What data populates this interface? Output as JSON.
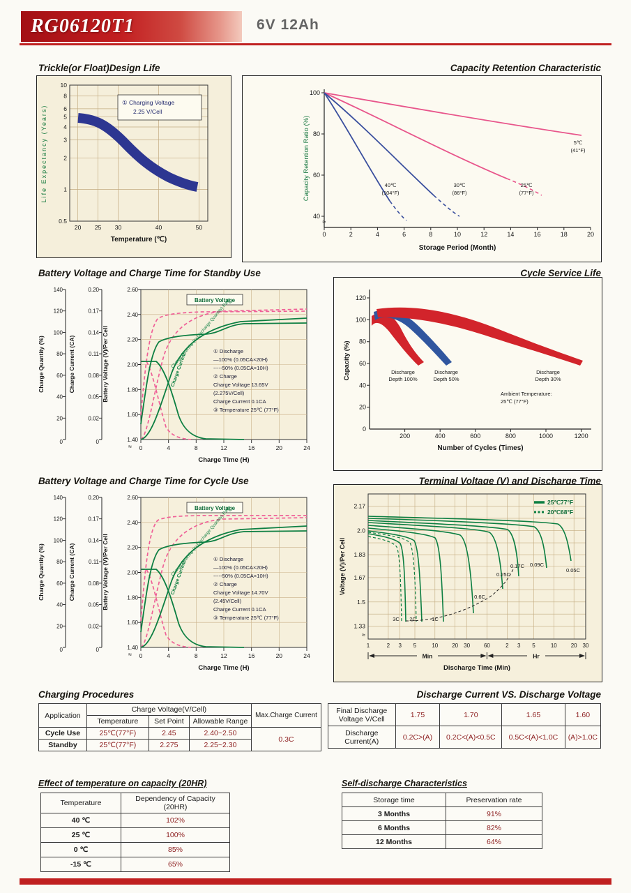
{
  "header": {
    "model": "RG06120T1",
    "rating": "6V  12Ah"
  },
  "misc": {
    "approx": "≈"
  },
  "charts": {
    "design_life": {
      "title": "Trickle(or Float)Design Life",
      "ylabel": "Life Expectancy (Years)",
      "xlabel": "Temperature (℃)",
      "yticks": [
        "10",
        "8",
        "6",
        "5",
        "4",
        "3",
        "2",
        "1",
        "0.5"
      ],
      "xticks": [
        "20",
        "25",
        "30",
        "40",
        "50"
      ],
      "legend_line1": "① Charging Voltage",
      "legend_line2": "2.25 V/Cell"
    },
    "capacity_retention": {
      "title": "Capacity Retention  Characteristic",
      "ylabel": "Capacity Retention Ratio (%)",
      "xlabel": "Storage Period (Month)",
      "yticks": [
        "100",
        "80",
        "60",
        "40"
      ],
      "xticks": [
        "0",
        "2",
        "4",
        "6",
        "8",
        "10",
        "12",
        "14",
        "16",
        "18",
        "20"
      ],
      "series_labels": [
        {
          "c": "5℃",
          "f": "(41°F)"
        },
        {
          "c": "40℃",
          "f": "(104°F)"
        },
        {
          "c": "30℃",
          "f": "(86°F)"
        },
        {
          "c": "25℃",
          "f": "(77°F)"
        }
      ]
    },
    "charge_axes": {
      "quantity_label": "Charge Quantity (%)",
      "current_label": "Charge Current (CA)",
      "voltage_label": "Battery Voltage (V)/Per Cell",
      "xlabel": "Charge Time (H)",
      "quantity_ticks": [
        "140",
        "120",
        "100",
        "80",
        "60",
        "40",
        "20"
      ],
      "current_ticks": [
        "0.20",
        "0.17",
        "0.14",
        "0.11",
        "0.08",
        "0.05",
        "0.02"
      ],
      "voltage_ticks": [
        "2.60",
        "2.40",
        "2.20",
        "2.00",
        "1.80",
        "1.60",
        "1.40"
      ],
      "zero": "0",
      "xticks": [
        "0",
        "4",
        "8",
        "12",
        "16",
        "20",
        "24"
      ],
      "voltage_tag": "Battery Voltage",
      "quantity_tag": "Charge Quantity (to-Discharge Quantity) Ratio",
      "current_tag": "Charge Current"
    },
    "standby": {
      "title": "Battery Voltage and Charge Time for Standby Use",
      "legend": [
        "① Discharge",
        "—100% (0.05CA×20H)",
        "-----50% (0.05CA×10H)",
        "② Charge",
        "Charge Voltage 13.65V",
        "(2.275V/Cell)",
        "Charge Current 0.1CA",
        "③ Temperature 25℃ (77°F)"
      ]
    },
    "cycle_use": {
      "title": "Battery Voltage and Charge Time for Cycle Use",
      "legend": [
        "① Discharge",
        "—100% (0.05CA×20H)",
        "-----50% (0.05CA×10H)",
        "② Charge",
        "Charge Voltage 14.70V",
        "(2.45V/Cell)",
        "Charge Current 0.1CA",
        "③ Temperature 25℃ (77°F)"
      ]
    },
    "cycle_life": {
      "title": "Cycle Service Life",
      "ylabel": "Capacity (%)",
      "xlabel": "Number of Cycles (Times)",
      "yticks": [
        "120",
        "100",
        "80",
        "60",
        "40",
        "20",
        "0"
      ],
      "xticks": [
        "200",
        "400",
        "600",
        "800",
        "1000",
        "1200"
      ],
      "band_labels": [
        [
          "Discharge",
          "Depth 100%"
        ],
        [
          "Discharge",
          "Depth 50%"
        ],
        [
          "Discharge",
          "Depth 30%"
        ]
      ],
      "ambient": [
        "Ambient Temperature:",
        "25℃ (77°F)"
      ]
    },
    "terminal_voltage": {
      "title": "Terminal Voltage (V) and Discharge Time",
      "ylabel": "Voltage (V)/Per Cell",
      "xlabel": "Discharge Time (Min)",
      "yticks": [
        "2.17",
        "2.0",
        "1.83",
        "1.67",
        "1.5",
        "1.33"
      ],
      "xticks_min": [
        "1",
        "2",
        "3",
        "5",
        "10",
        "20",
        "30",
        "60"
      ],
      "xticks_hr": [
        "2",
        "3",
        "5",
        "10",
        "20",
        "30"
      ],
      "min_label": "Min",
      "hr_label": "Hr",
      "legend_25": "25℃77°F",
      "legend_20": "20℃68°F",
      "rate_labels": [
        "3C",
        "2C",
        "1C",
        "0.6C",
        "0.25C",
        "0.17C",
        "0.09C",
        "0.05C"
      ]
    }
  },
  "tables": {
    "charging": {
      "title": "Charging Procedures",
      "h_application": "Application",
      "h_charge_voltage": "Charge Voltage(V/Cell)",
      "h_temperature": "Temperature",
      "h_set_point": "Set Point",
      "h_allowable": "Allowable Range",
      "h_max_current": "Max.Charge Current",
      "rows": [
        {
          "app": "Cycle Use",
          "temp": "25℃(77°F)",
          "set": "2.45",
          "range": "2.40~2.50"
        },
        {
          "app": "Standby",
          "temp": "25℃(77°F)",
          "set": "2.275",
          "range": "2.25~2.30"
        }
      ],
      "max_current": "0.3C"
    },
    "discharge": {
      "title": "Discharge Current VS. Discharge Voltage",
      "row1_label": [
        "Final Discharge",
        "Voltage V/Cell"
      ],
      "row1_values": [
        "1.75",
        "1.70",
        "1.65",
        "1.60"
      ],
      "row2_label": [
        "Discharge",
        "Current(A)"
      ],
      "row2_values": [
        "0.2C>(A)",
        "0.2C<(A)<0.5C",
        "0.5C<(A)<1.0C",
        "(A)>1.0C"
      ]
    },
    "temp_capacity": {
      "title": "Effect of temperature on capacity (20HR)",
      "headers": [
        "Temperature",
        "Dependency of Capacity (20HR)"
      ],
      "rows": [
        [
          "40 ℃",
          "102%"
        ],
        [
          "25 ℃",
          "100%"
        ],
        [
          "0 ℃",
          "85%"
        ],
        [
          "-15 ℃",
          "65%"
        ]
      ]
    },
    "self_discharge": {
      "title": "Self-discharge Characteristics",
      "headers": [
        "Storage time",
        "Preservation rate"
      ],
      "rows": [
        [
          "3 Months",
          "91%"
        ],
        [
          "6 Months",
          "82%"
        ],
        [
          "12 Months",
          "64%"
        ]
      ]
    }
  },
  "chart_data": [
    {
      "type": "line",
      "title": "Trickle(or Float)Design Life",
      "xlabel": "Temperature (℃)",
      "ylabel": "Life Expectancy (Years)",
      "y_scale": "log",
      "ylim": [
        0.5,
        10
      ],
      "xticks": [
        20,
        25,
        30,
        40,
        50
      ],
      "series": [
        {
          "name": "Charging Voltage 2.25V/Cell (design life band)",
          "x": [
            20,
            25,
            30,
            35,
            40,
            45,
            50
          ],
          "y": [
            5,
            4.4,
            3.2,
            2.2,
            1.6,
            1.2,
            1
          ]
        }
      ]
    },
    {
      "type": "line",
      "title": "Capacity Retention Characteristic",
      "xlabel": "Storage Period (Month)",
      "ylabel": "Capacity Retention Ratio (%)",
      "xlim": [
        0,
        20
      ],
      "ylim": [
        40,
        100
      ],
      "series": [
        {
          "name": "5℃ (41°F)",
          "x": [
            0,
            5,
            10,
            15,
            20
          ],
          "y": [
            100,
            95,
            90,
            85,
            80
          ]
        },
        {
          "name": "25℃ (77°F)",
          "x": [
            0,
            4,
            8,
            12,
            16
          ],
          "y": [
            100,
            88,
            76,
            65,
            56
          ]
        },
        {
          "name": "30℃ (86°F)",
          "x": [
            0,
            3,
            6,
            9,
            11
          ],
          "y": [
            100,
            85,
            70,
            56,
            48
          ]
        },
        {
          "name": "40℃ (104°F)",
          "x": [
            0,
            2,
            4,
            6,
            7
          ],
          "y": [
            100,
            84,
            68,
            52,
            45
          ]
        }
      ]
    },
    {
      "type": "line",
      "title": "Battery Voltage and Charge Time for Standby Use",
      "xlabel": "Charge Time (H)",
      "conditions": {
        "charge_voltage": "13.65V (2.275V/Cell)",
        "charge_current": "0.1CA",
        "temperature": "25℃ (77°F)",
        "discharge": "100% (0.05CA×20H) solid, 50% (0.05CA×10H) dashed"
      },
      "series": [
        {
          "name": "Battery Voltage",
          "unit": "V/Per Cell",
          "x": [
            0,
            2,
            4,
            8,
            12,
            24
          ],
          "y": [
            1.55,
            2.0,
            2.2,
            2.25,
            2.3,
            2.3
          ]
        },
        {
          "name": "Charge Quantity Ratio",
          "unit": "%",
          "x": [
            0,
            4,
            8,
            12,
            16,
            24
          ],
          "y": [
            0,
            40,
            80,
            100,
            110,
            115
          ]
        },
        {
          "name": "Charge Current",
          "unit": "CA",
          "x": [
            0,
            2,
            4,
            8,
            12,
            24
          ],
          "y": [
            0.1,
            0.1,
            0.08,
            0.03,
            0.01,
            0
          ]
        }
      ]
    },
    {
      "type": "area",
      "title": "Cycle Service Life",
      "xlabel": "Number of Cycles (Times)",
      "ylabel": "Capacity (%)",
      "ylim": [
        0,
        120
      ],
      "series": [
        {
          "name": "Discharge Depth 100%",
          "capacity_60pct_at_cycles": 300
        },
        {
          "name": "Discharge Depth 50%",
          "capacity_60pct_at_cycles": 500
        },
        {
          "name": "Discharge Depth 30%",
          "capacity_60pct_at_cycles": 1200
        }
      ],
      "note": "Ambient Temperature: 25℃ (77°F)"
    },
    {
      "type": "line",
      "title": "Battery Voltage and Charge Time for Cycle Use",
      "xlabel": "Charge Time (H)",
      "conditions": {
        "charge_voltage": "14.70V (2.45V/Cell)",
        "charge_current": "0.1CA",
        "temperature": "25℃ (77°F)",
        "discharge": "100% (0.05CA×20H) solid, 50% (0.05CA×10H) dashed"
      }
    },
    {
      "type": "line",
      "title": "Terminal Voltage (V) and Discharge Time",
      "xlabel": "Discharge Time (Min)",
      "ylabel": "Voltage (V)/Per Cell",
      "x_scale": "log",
      "yticks": [
        2.17,
        2.0,
        1.83,
        1.67,
        1.5,
        1.33
      ],
      "series_rates": [
        "3C",
        "2C",
        "1C",
        "0.6C",
        "0.25C",
        "0.17C",
        "0.09C",
        "0.05C"
      ],
      "temperatures": [
        "25℃77°F (solid)",
        "20℃68°F (dashed)"
      ]
    }
  ]
}
